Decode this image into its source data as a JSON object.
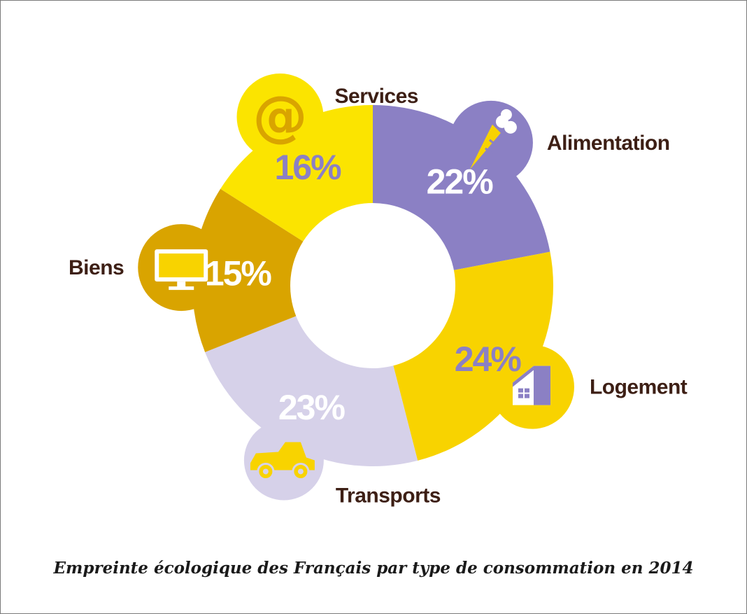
{
  "chart_data": {
    "type": "pie",
    "subtype": "donut",
    "title": "Empreinte écologique des Français par type de consommation en 2014",
    "categories": [
      "Alimentation",
      "Logement",
      "Transports",
      "Biens",
      "Services"
    ],
    "values": [
      22,
      24,
      23,
      15,
      16
    ],
    "labels": [
      "22%",
      "24%",
      "23%",
      "15%",
      "16%"
    ],
    "colors": [
      "#8b80c4",
      "#f8d300",
      "#d6d1e9",
      "#d9a400",
      "#fbe400"
    ],
    "label_colors": [
      "#ffffff",
      "#8b80c4",
      "#ffffff",
      "#ffffff",
      "#8b80c4"
    ],
    "icons": [
      "carrot-icon",
      "house-icon",
      "car-icon",
      "monitor-icon",
      "at-sign-icon"
    ]
  }
}
